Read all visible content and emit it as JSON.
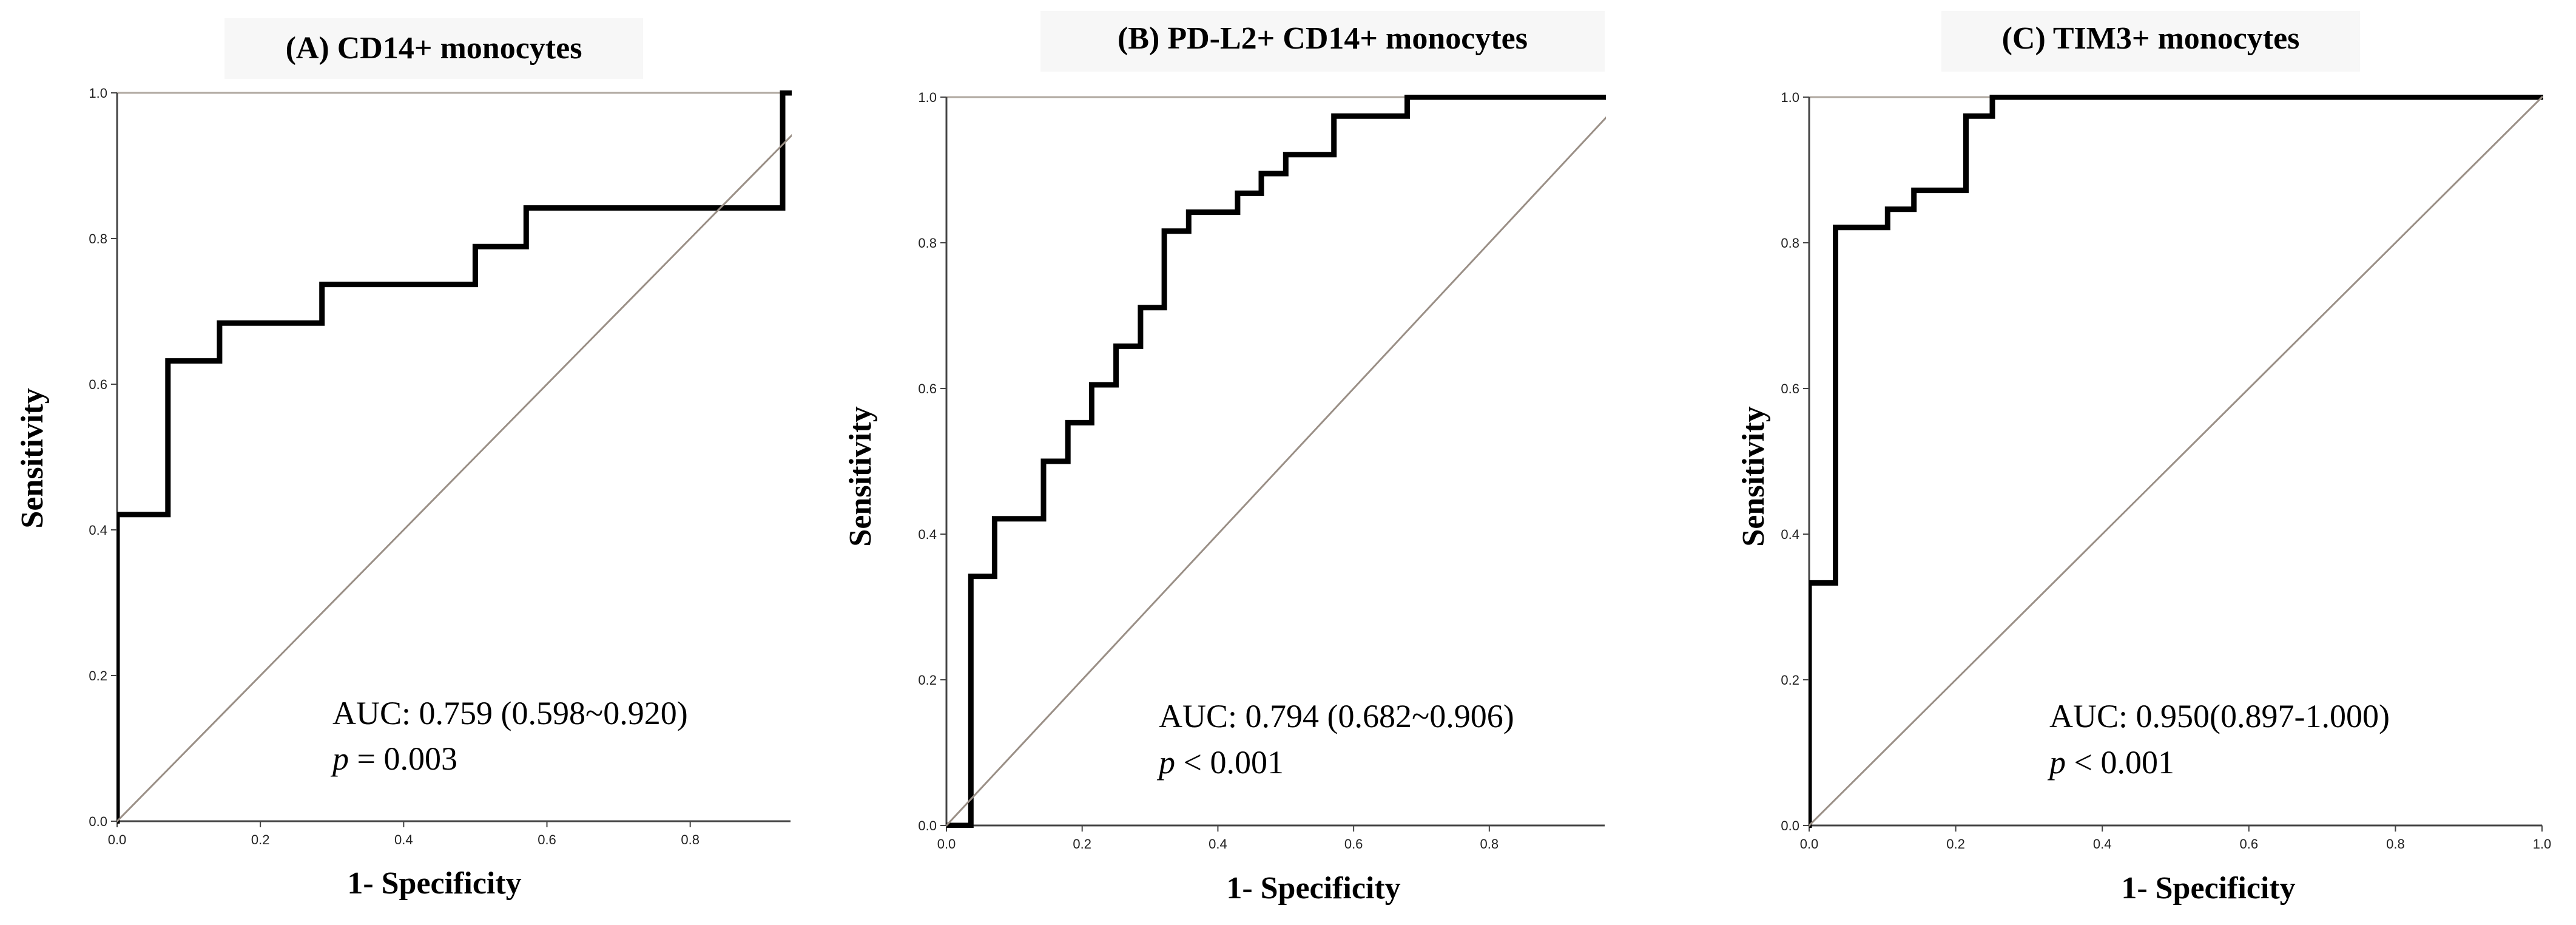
{
  "chart_data": [
    {
      "type": "line",
      "title": "(A) CD14+ monocytes",
      "xlabel": "1- Specificity",
      "ylabel": "Sensitivity",
      "xlim": [
        0,
        0.94
      ],
      "ylim": [
        0,
        1
      ],
      "x_ticks": [
        "0.0",
        "0.2",
        "0.4",
        "0.6",
        "0.8"
      ],
      "x_tick_values": [
        0,
        0.2,
        0.4,
        0.6,
        0.8
      ],
      "y_ticks": [
        "0.0",
        "0.2",
        "0.4",
        "0.6",
        "0.8",
        "1.0"
      ],
      "y_tick_values": [
        0,
        0.2,
        0.4,
        0.6,
        0.8,
        1.0
      ],
      "auc_text": "AUC: 0.759 (0.598~0.920)",
      "p_symbol": "p",
      "p_value_text": " = 0.003",
      "series": [
        {
          "name": "ROC",
          "x": [
            0,
            0,
            0.071,
            0.071,
            0.143,
            0.143,
            0.286,
            0.286,
            0.5,
            0.5,
            0.571,
            0.571,
            0.929,
            0.929,
            0.94
          ],
          "y": [
            0,
            0.421,
            0.421,
            0.632,
            0.632,
            0.684,
            0.684,
            0.737,
            0.737,
            0.789,
            0.789,
            0.842,
            0.842,
            1.0,
            1.0
          ]
        },
        {
          "name": "Reference",
          "x": [
            0,
            1
          ],
          "y": [
            0,
            1
          ]
        }
      ]
    },
    {
      "type": "line",
      "title": "(B) PD-L2+ CD14+ monocytes",
      "xlabel": "1- Specificity",
      "ylabel": "Sensitivity",
      "xlim": [
        0,
        0.97
      ],
      "ylim": [
        0,
        1
      ],
      "x_ticks": [
        "0.0",
        "0.2",
        "0.4",
        "0.6",
        "0.8"
      ],
      "x_tick_values": [
        0,
        0.2,
        0.4,
        0.6,
        0.8
      ],
      "y_ticks": [
        "0.0",
        "0.2",
        "0.4",
        "0.6",
        "0.8",
        "1.0"
      ],
      "y_tick_values": [
        0,
        0.2,
        0.4,
        0.6,
        0.8,
        1.0
      ],
      "auc_text": "AUC: 0.794 (0.682~0.906)",
      "p_symbol": "p",
      "p_value_text": " < 0.001",
      "series": [
        {
          "name": "ROC",
          "x": [
            0,
            0.036,
            0.036,
            0.071,
            0.071,
            0.143,
            0.143,
            0.179,
            0.179,
            0.214,
            0.214,
            0.25,
            0.25,
            0.286,
            0.286,
            0.321,
            0.321,
            0.357,
            0.357,
            0.429,
            0.429,
            0.464,
            0.464,
            0.5,
            0.5,
            0.571,
            0.571,
            0.679,
            0.679,
            0.97
          ],
          "y": [
            0,
            0,
            0.342,
            0.342,
            0.421,
            0.421,
            0.5,
            0.5,
            0.553,
            0.553,
            0.605,
            0.605,
            0.658,
            0.658,
            0.711,
            0.711,
            0.816,
            0.816,
            0.842,
            0.842,
            0.868,
            0.868,
            0.895,
            0.895,
            0.921,
            0.921,
            0.974,
            0.974,
            1.0,
            1.0
          ]
        },
        {
          "name": "Reference",
          "x": [
            0,
            1
          ],
          "y": [
            0,
            1
          ]
        }
      ]
    },
    {
      "type": "line",
      "title": "(C) TIM3+ monocytes",
      "xlabel": "1- Specificity",
      "ylabel": "Sensitivity",
      "xlim": [
        0,
        1.0
      ],
      "ylim": [
        0,
        1
      ],
      "x_ticks": [
        "0.0",
        "0.2",
        "0.4",
        "0.6",
        "0.8",
        "1.0"
      ],
      "x_tick_values": [
        0,
        0.2,
        0.4,
        0.6,
        0.8,
        1.0
      ],
      "y_ticks": [
        "0.0",
        "0.2",
        "0.4",
        "0.6",
        "0.8",
        "1.0"
      ],
      "y_tick_values": [
        0,
        0.2,
        0.4,
        0.6,
        0.8,
        1.0
      ],
      "auc_text": "AUC: 0.950(0.897-1.000)",
      "p_symbol": "p",
      "p_value_text": " < 0.001",
      "series": [
        {
          "name": "ROC",
          "x": [
            0,
            0,
            0.036,
            0.036,
            0.107,
            0.107,
            0.143,
            0.143,
            0.214,
            0.214,
            0.25,
            0.25,
            1.0
          ],
          "y": [
            0,
            0.333,
            0.333,
            0.821,
            0.821,
            0.846,
            0.846,
            0.872,
            0.872,
            0.974,
            0.974,
            1.0,
            1.0
          ]
        },
        {
          "name": "Reference",
          "x": [
            0,
            1
          ],
          "y": [
            0,
            1
          ]
        }
      ]
    }
  ]
}
